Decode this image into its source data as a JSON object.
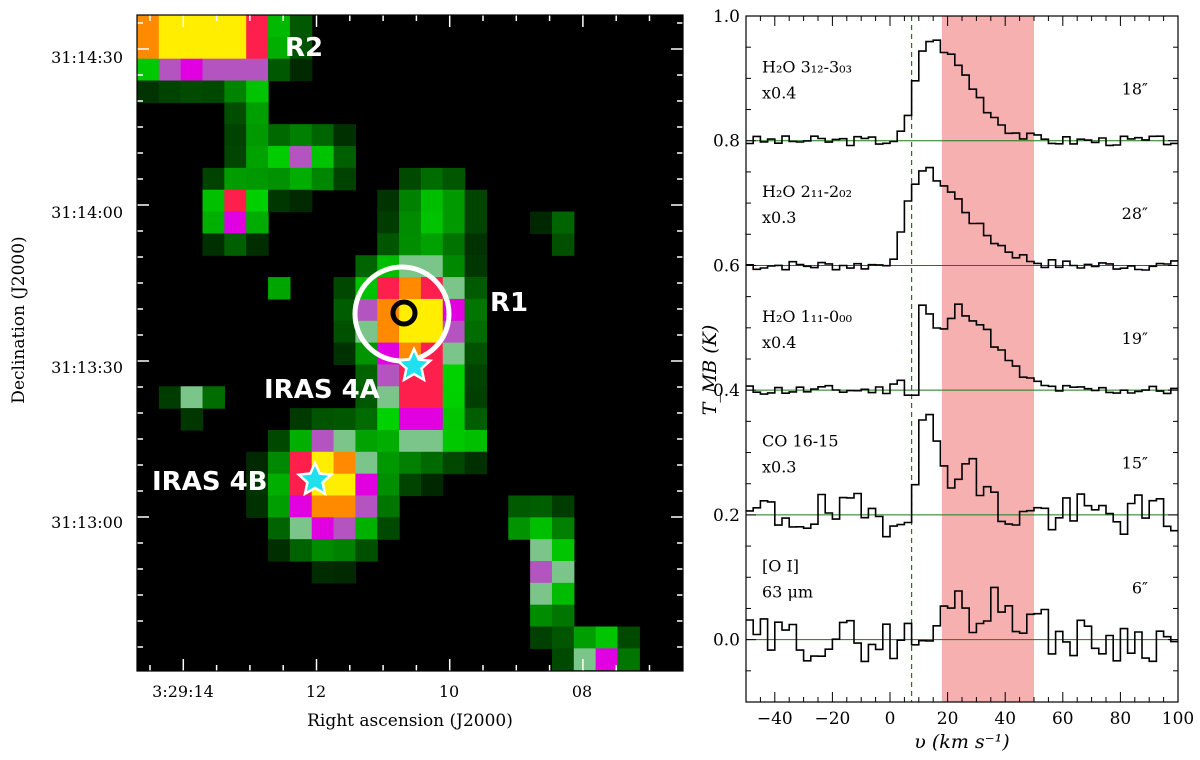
{
  "left_panel": {
    "xlabel": "Right ascension (J2000)",
    "ylabel": "Declination (J2000)",
    "ra_ticks": [
      "3:29:14",
      "12",
      "10",
      "08"
    ],
    "dec_ticks": [
      "31:14:30",
      "31:14:00",
      "31:13:30",
      "31:13:00"
    ],
    "labels": {
      "r2": "R2",
      "r1": "R1",
      "iras4a": "IRAS 4A",
      "iras4b": "IRAS 4B"
    },
    "colors": {
      "background": "#000000",
      "emission_low": "#00c800",
      "emission_mid": "#ff00ff",
      "emission_high": "#ffee00",
      "star": "#1fe0ee",
      "outer_circle": "#ffffff",
      "inner_circle": "#000000"
    }
  },
  "chart_data": {
    "type": "line",
    "style": "step",
    "xlabel": "υ (km s⁻¹)",
    "ylabel": "T_MB (K)",
    "xlim": [
      -50,
      100
    ],
    "ylim": [
      -0.1,
      1.0
    ],
    "x_ticks": [
      -40,
      -20,
      0,
      20,
      40,
      60,
      80,
      100
    ],
    "y_ticks": [
      "0.0",
      "0.2",
      "0.4",
      "0.6",
      "0.8",
      "1.0"
    ],
    "v_source": 7.5,
    "shaded_range": [
      18,
      50
    ],
    "colors": {
      "shade": "#f6b0b0",
      "baseline": "#1a7a1a",
      "line": "#000000"
    },
    "series": [
      {
        "id": "h2o312",
        "name_main": "H₂O 3₁₂-3₀₃",
        "scale": "x0.4",
        "beam": "18″",
        "offset": 0.8,
        "peak": 0.16,
        "noise": 0.008,
        "absorb": 0.0,
        "centers": [
          13,
          28
        ],
        "amps": [
          1.0,
          0.25
        ],
        "widths_l": [
          4,
          6
        ],
        "widths_r": [
          10,
          10
        ],
        "seed": 3
      },
      {
        "id": "h2o211",
        "name_main": "H₂O 2₁₁-2₀₂",
        "scale": "x0.3",
        "beam": "28″",
        "offset": 0.6,
        "peak": 0.15,
        "noise": 0.008,
        "absorb": 0.0,
        "centers": [
          11,
          26
        ],
        "amps": [
          1.0,
          0.35
        ],
        "widths_l": [
          5,
          6
        ],
        "widths_r": [
          9,
          12
        ],
        "seed": 7
      },
      {
        "id": "h2o111",
        "name_main": "H₂O 1₁₁-0₀₀",
        "scale": "x0.4",
        "beam": "19″",
        "offset": 0.4,
        "peak": 0.15,
        "noise": 0.008,
        "absorb": 0.4,
        "centers": [
          11,
          24
        ],
        "amps": [
          0.9,
          0.85
        ],
        "widths_l": [
          4,
          4
        ],
        "widths_r": [
          5,
          12
        ],
        "seed": 11
      },
      {
        "id": "co1615",
        "name_main": "CO 16-15",
        "scale": "x0.3",
        "beam": "15″",
        "offset": 0.2,
        "peak": 0.14,
        "noise": 0.035,
        "absorb": 0.0,
        "centers": [
          12,
          26
        ],
        "amps": [
          1.0,
          0.5
        ],
        "widths_l": [
          3,
          4
        ],
        "widths_r": [
          6,
          6
        ],
        "seed": 19
      },
      {
        "id": "oi63",
        "name_main": "[O I]",
        "scale": "63 μm",
        "beam": "6″",
        "offset": 0.0,
        "peak": 0.08,
        "noise": 0.035,
        "absorb": 0.0,
        "centers": [
          21,
          38
        ],
        "amps": [
          1.0,
          0.7
        ],
        "widths_l": [
          2,
          6
        ],
        "widths_r": [
          5,
          10
        ],
        "seed": 29
      }
    ]
  }
}
